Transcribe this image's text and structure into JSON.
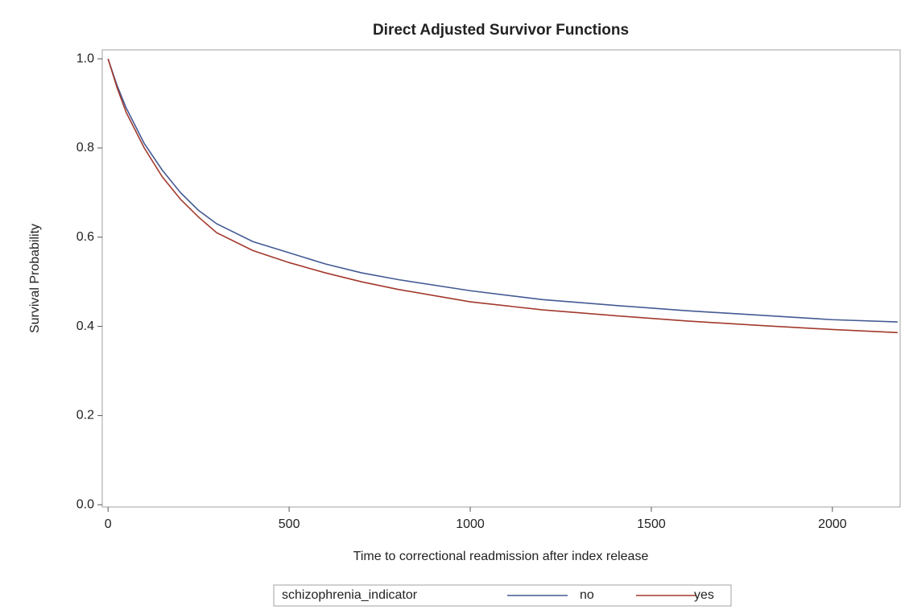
{
  "chart_data": {
    "type": "line",
    "title": "Direct Adjusted Survivor Functions",
    "x_label": "Time to correctional readmission after index release",
    "y_label": "Survival Probability",
    "legend_title": "schizophrenia_indicator",
    "x": [
      0,
      25,
      50,
      100,
      150,
      200,
      250,
      300,
      400,
      500,
      600,
      700,
      800,
      1000,
      1200,
      1400,
      1600,
      1800,
      2000,
      2180
    ],
    "series": [
      {
        "name": "no",
        "color": "#445a94",
        "values": [
          1.0,
          0.94,
          0.89,
          0.81,
          0.75,
          0.7,
          0.66,
          0.63,
          0.59,
          0.565,
          0.54,
          0.52,
          0.505,
          0.48,
          0.46,
          0.447,
          0.435,
          0.425,
          0.415,
          0.41
        ]
      },
      {
        "name": "yes",
        "color": "#a3392c",
        "values": [
          1.0,
          0.935,
          0.88,
          0.8,
          0.735,
          0.685,
          0.645,
          0.61,
          0.57,
          0.543,
          0.52,
          0.5,
          0.483,
          0.455,
          0.437,
          0.424,
          0.412,
          0.402,
          0.393,
          0.386
        ]
      }
    ],
    "xlim": [
      -16,
      2187
    ],
    "xticks": [
      0,
      500,
      1000,
      1500,
      2000
    ],
    "ylim": [
      -0.005,
      1.02
    ],
    "yticks": [
      {
        "value": 0,
        "label": "0.0"
      },
      0.2,
      0.4,
      0.6,
      0.8,
      {
        "value": 1,
        "label": "1.0"
      }
    ],
    "grid": false,
    "legend": "bottom"
  }
}
